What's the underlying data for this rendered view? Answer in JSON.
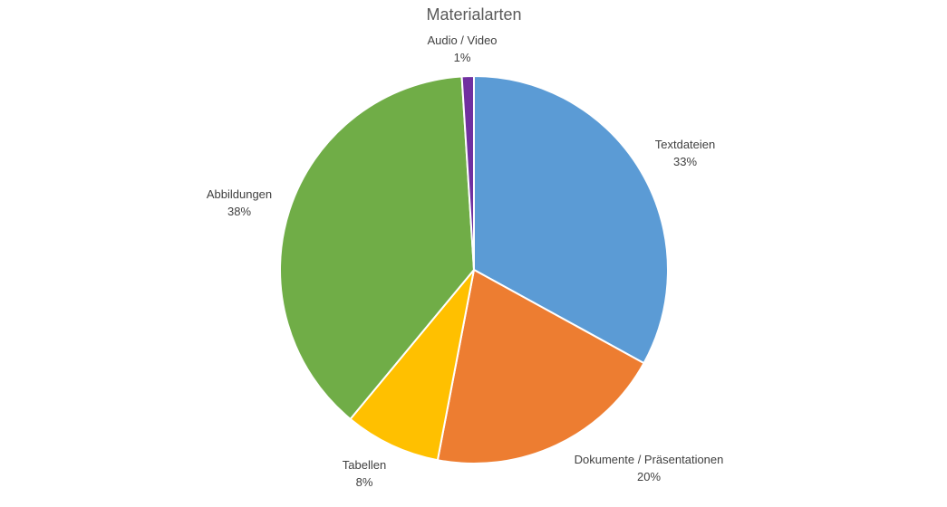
{
  "chart_data": {
    "type": "pie",
    "title": "Materialarten",
    "start_angle_deg": 0,
    "direction": "clockwise",
    "legend": "none",
    "slices": [
      {
        "label": "Textdateien",
        "value": 33,
        "display": "33%",
        "color": "#5B9BD5"
      },
      {
        "label": "Dokumente / Präsentationen",
        "value": 20,
        "display": "20%",
        "color": "#ED7D31"
      },
      {
        "label": "Tabellen",
        "value": 8,
        "display": "8%",
        "color": "#FFC000"
      },
      {
        "label": "Abbildungen",
        "value": 38,
        "display": "38%",
        "color": "#70AD47"
      },
      {
        "label": "Audio / Video",
        "value": 1,
        "display": "1%",
        "color": "#7030A0"
      }
    ]
  }
}
